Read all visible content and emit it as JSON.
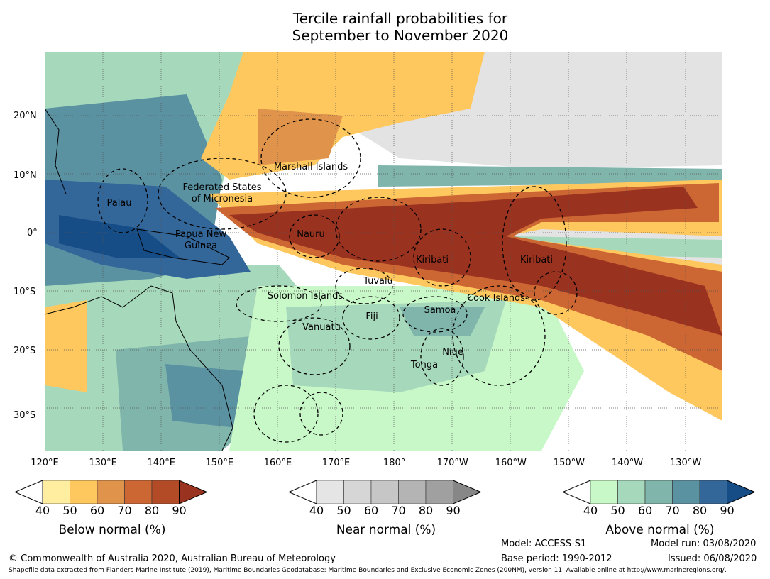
{
  "title": {
    "line1": "Tercile rainfall probabilities for",
    "line2": "September to November 2020"
  },
  "map": {
    "lat_ticks": [
      "20°N",
      "10°N",
      "0°",
      "10°S",
      "20°S",
      "30°S"
    ],
    "lon_ticks": [
      "120°E",
      "130°E",
      "140°E",
      "150°E",
      "160°E",
      "170°E",
      "180°",
      "170°W",
      "160°W",
      "150°W",
      "140°W",
      "130°W"
    ],
    "labels": {
      "palau": "Palau",
      "fsm1": "Federated States",
      "fsm2": "of Micronesia",
      "marshall": "Marshall Islands",
      "png1": "Papua New",
      "png2": "Guinea",
      "nauru": "Nauru",
      "kiribati1": "Kiribati",
      "kiribati2": "Kiribati",
      "tuvalu": "Tuvalu",
      "solomon": "Solomon Islands",
      "cook": "Cook Islands",
      "fiji": "Fiji",
      "samoa": "Samoa",
      "vanuatu": "Vanuatu",
      "niue": "Niue",
      "tonga": "Tonga"
    }
  },
  "colorbars": [
    {
      "label": "Below normal (%)",
      "ticks": [
        "40",
        "50",
        "60",
        "70",
        "80",
        "90"
      ],
      "colors": [
        "#ffffff",
        "#ffeda0",
        "#fec85f",
        "#e0934a",
        "#cc6633",
        "#b24b26",
        "#9a3220"
      ]
    },
    {
      "label": "Near normal (%)",
      "ticks": [
        "40",
        "50",
        "60",
        "70",
        "80",
        "90"
      ],
      "colors": [
        "#ffffff",
        "#e5e5e5",
        "#d6d6d6",
        "#c6c6c6",
        "#b4b4b4",
        "#a0a0a0",
        "#878787"
      ]
    },
    {
      "label": "Above normal (%)",
      "ticks": [
        "40",
        "50",
        "60",
        "70",
        "80",
        "90"
      ],
      "colors": [
        "#ffffff",
        "#c8f7c8",
        "#a6d8bb",
        "#80b5ab",
        "#5a92a2",
        "#336699",
        "#174d86"
      ]
    }
  ],
  "footer": {
    "copyright": "© Commonwealth of Australia 2020, Australian Bureau of Meteorology",
    "model": "Model: ACCESS-S1",
    "base_period": "Base period: 1990-2012",
    "model_run": "Model run: 03/08/2020",
    "issued": "Issued: 06/08/2020",
    "shapefile": "Shapefile data extracted from Flanders Marine Institute (2019), Maritime Boundaries Geodatabase: Maritime Boundaries and Exclusive Economic Zones (200NM), version 11. Available online at http://www.marineregions.org/."
  }
}
